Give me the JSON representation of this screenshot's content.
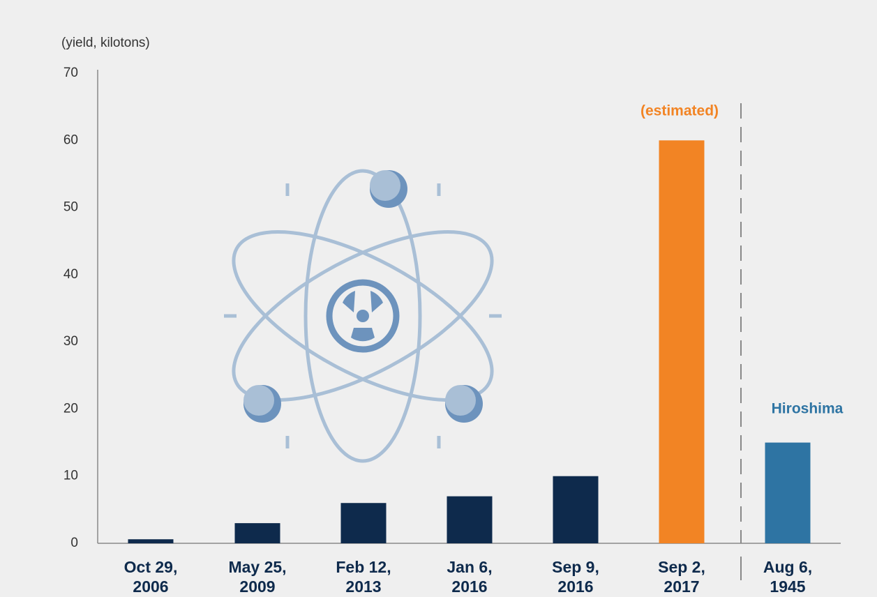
{
  "chart_data": {
    "type": "bar",
    "y_axis_label": "(yield, kilotons)",
    "categories": [
      "Oct 29, 2006",
      "May 25, 2009",
      "Feb 12, 2013",
      "Jan 6, 2016",
      "Sep 9, 2016",
      "Sep 2, 2017",
      "Aug 6, 1945"
    ],
    "values": [
      0.6,
      3,
      6,
      7,
      10,
      60,
      15
    ],
    "colors": [
      "#0e2a4c",
      "#0e2a4c",
      "#0e2a4c",
      "#0e2a4c",
      "#0e2a4c",
      "#f28424",
      "#2e74a3"
    ],
    "annotations": [
      {
        "text": "(estimated)",
        "color": "#f28424"
      },
      {
        "text": "Hiroshima",
        "color": "#2e74a3"
      }
    ],
    "ylim": [
      0,
      70
    ],
    "yticks": [
      0,
      10,
      20,
      30,
      40,
      50,
      60,
      70
    ],
    "grid": false
  }
}
